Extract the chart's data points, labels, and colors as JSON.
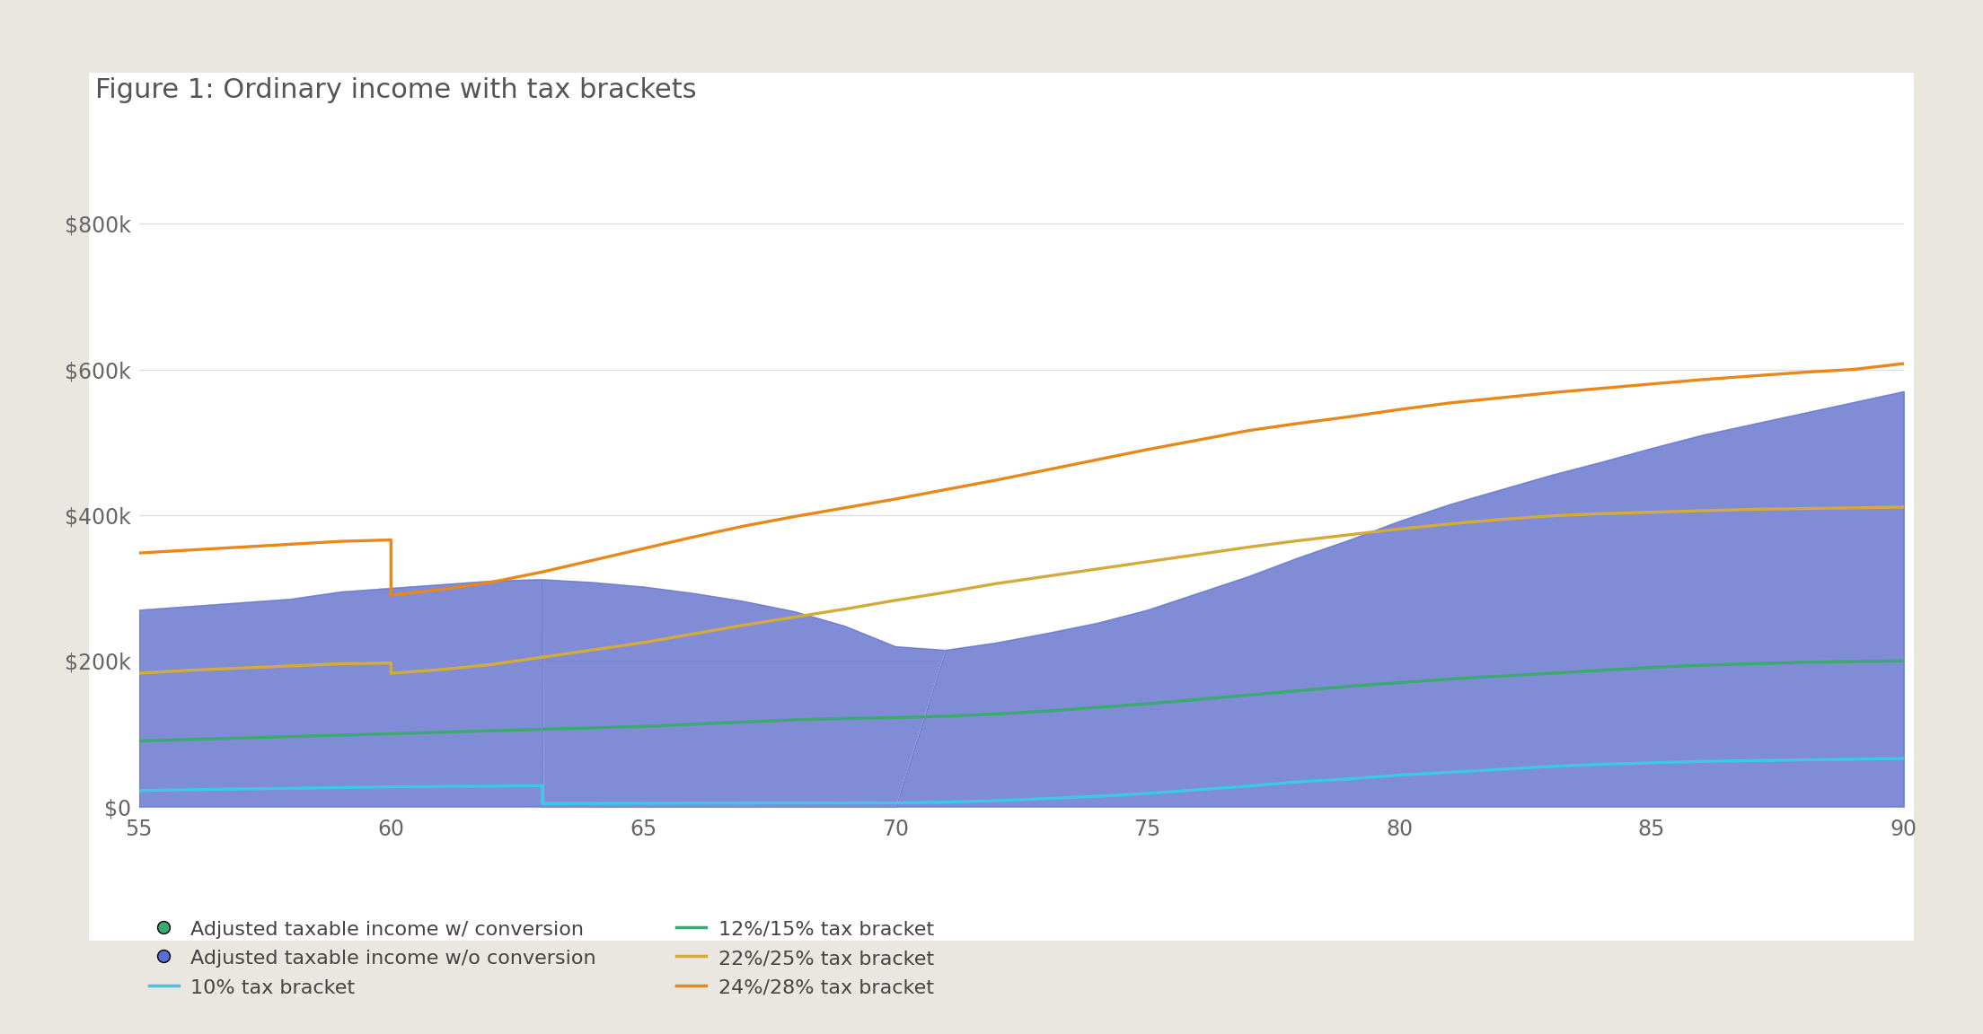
{
  "title": "Figure 1: Ordinary income with tax brackets",
  "bg_color": "#eae6e0",
  "chart_bg": "#ffffff",
  "xmin": 55,
  "xmax": 90,
  "ymin": 0,
  "ymax": 880000,
  "yticks": [
    0,
    200000,
    400000,
    600000,
    800000
  ],
  "xticks": [
    55,
    60,
    65,
    70,
    75,
    80,
    85,
    90
  ],
  "wo_conversion_x": [
    55,
    56,
    57,
    58,
    59,
    60,
    61,
    62,
    63,
    64,
    65,
    66,
    67,
    68,
    69,
    70,
    71,
    72,
    73,
    74,
    75,
    76,
    77,
    78,
    79,
    80,
    81,
    82,
    83,
    84,
    85,
    86,
    87,
    88,
    89,
    90
  ],
  "wo_conversion_y": [
    270000,
    275000,
    280000,
    285000,
    295000,
    300000,
    305000,
    310000,
    312000,
    308000,
    302000,
    293000,
    282000,
    268000,
    248000,
    220000,
    215000,
    225000,
    238000,
    252000,
    270000,
    293000,
    316000,
    342000,
    366000,
    392000,
    415000,
    435000,
    455000,
    473000,
    492000,
    510000,
    525000,
    540000,
    555000,
    570000
  ],
  "wc_conversion_x": [
    55,
    56,
    57,
    58,
    59,
    60,
    61,
    62,
    63,
    63.01,
    64,
    65,
    66,
    67,
    68,
    69,
    70,
    70.01,
    71,
    72,
    73,
    74,
    75,
    76,
    77,
    78,
    79,
    80,
    81,
    82,
    83,
    84,
    85,
    86,
    87,
    88,
    89,
    90
  ],
  "wc_conversion_y": [
    270000,
    275000,
    280000,
    285000,
    295000,
    300000,
    305000,
    310000,
    312000,
    0,
    0,
    0,
    0,
    0,
    0,
    0,
    0,
    0,
    215000,
    225000,
    238000,
    252000,
    270000,
    293000,
    316000,
    342000,
    366000,
    392000,
    415000,
    435000,
    455000,
    473000,
    492000,
    510000,
    525000,
    540000,
    555000,
    570000
  ],
  "bracket_10_x": [
    55,
    56,
    57,
    58,
    59,
    60,
    61,
    62,
    63,
    63,
    64,
    65,
    66,
    67,
    68,
    69,
    70,
    70,
    71,
    72,
    73,
    74,
    75,
    76,
    77,
    78,
    79,
    80,
    81,
    82,
    83,
    84,
    85,
    86,
    87,
    88,
    89,
    90
  ],
  "bracket_10_y": [
    22000,
    23000,
    24000,
    25000,
    26000,
    27000,
    27500,
    28000,
    28500,
    4000,
    4200,
    4400,
    4600,
    4700,
    4800,
    4900,
    5000,
    5000,
    6000,
    8000,
    11000,
    14000,
    18000,
    23000,
    28000,
    34000,
    38000,
    43000,
    47000,
    51000,
    55000,
    58000,
    60000,
    62000,
    63000,
    64000,
    65000,
    66000
  ],
  "bracket_12_x": [
    55,
    56,
    57,
    58,
    59,
    60,
    61,
    62,
    63,
    63,
    64,
    65,
    66,
    67,
    68,
    69,
    70,
    70,
    71,
    72,
    73,
    74,
    75,
    76,
    77,
    78,
    79,
    80,
    81,
    82,
    83,
    84,
    85,
    86,
    87,
    88,
    89,
    90
  ],
  "bracket_12_y": [
    90000,
    92000,
    94000,
    96000,
    98000,
    100000,
    102000,
    104000,
    106000,
    106000,
    108000,
    110000,
    113000,
    116000,
    119000,
    121000,
    122000,
    122000,
    124000,
    127000,
    131000,
    136000,
    141000,
    147000,
    153000,
    159000,
    165000,
    170000,
    175000,
    179000,
    183000,
    187000,
    191000,
    194000,
    196000,
    198000,
    199000,
    200000
  ],
  "bracket_22_x": [
    55,
    56,
    57,
    58,
    59,
    60,
    60,
    61,
    62,
    63,
    64,
    65,
    66,
    67,
    68,
    69,
    70,
    71,
    72,
    73,
    74,
    75,
    76,
    77,
    78,
    79,
    80,
    81,
    82,
    83,
    84,
    85,
    86,
    87,
    88,
    89,
    90
  ],
  "bracket_22_y": [
    183000,
    187000,
    190000,
    193000,
    196000,
    197000,
    183000,
    188000,
    195000,
    205000,
    215000,
    225000,
    237000,
    249000,
    260000,
    271000,
    283000,
    294000,
    306000,
    316000,
    326000,
    336000,
    346000,
    356000,
    365000,
    373000,
    381000,
    388000,
    394000,
    399000,
    402000,
    404000,
    406000,
    408000,
    409000,
    410000,
    411000
  ],
  "bracket_24_x": [
    55,
    56,
    57,
    58,
    59,
    60,
    60,
    61,
    62,
    63,
    64,
    65,
    66,
    67,
    68,
    69,
    70,
    71,
    72,
    73,
    74,
    75,
    76,
    77,
    78,
    79,
    80,
    81,
    82,
    83,
    84,
    85,
    86,
    87,
    88,
    89,
    90
  ],
  "bracket_24_y": [
    348000,
    352000,
    356000,
    360000,
    364000,
    366000,
    290000,
    298000,
    308000,
    322000,
    338000,
    354000,
    370000,
    385000,
    398000,
    410000,
    422000,
    435000,
    448000,
    462000,
    476000,
    490000,
    503000,
    516000,
    526000,
    535000,
    545000,
    554000,
    561000,
    568000,
    574000,
    580000,
    586000,
    591000,
    596000,
    600000,
    608000
  ],
  "color_fill_wo": "#6473cc",
  "color_fill_wc": "#6473cc",
  "color_bracket_10": "#3ec8e8",
  "color_bracket_12": "#3aaa70",
  "color_bracket_22": "#d4aa3c",
  "color_bracket_24": "#e8881a",
  "color_legend_dot_wc": "#3aaa70",
  "color_legend_dot_wo": "#5b6cd4",
  "legend_labels": [
    "Adjusted taxable income w/ conversion",
    "Adjusted taxable income w/o conversion",
    "10% tax bracket",
    "12%/15% tax bracket",
    "22%/25% tax bracket",
    "24%/28% tax bracket"
  ]
}
